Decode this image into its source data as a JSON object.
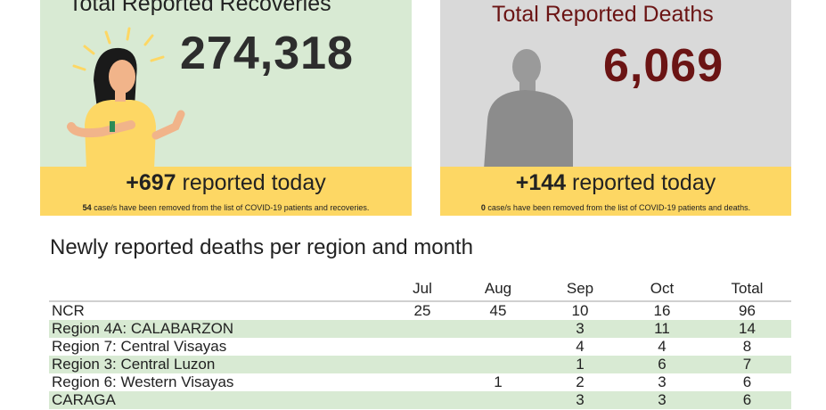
{
  "recoveries": {
    "title": "Total Reported Recoveries",
    "total": "274,318",
    "today_value": "+697",
    "today_label": "reported today",
    "removed_count": "54",
    "removed_text": "case/s have been removed from the list of COVID-19 patients and recoveries."
  },
  "deaths": {
    "title": "Total Reported Deaths",
    "total": "6,069",
    "today_value": "+144",
    "today_label": "reported today",
    "removed_count": "0",
    "removed_text": "case/s have been removed from the list of COVID-19 patients and deaths."
  },
  "table": {
    "title": "Newly reported deaths per region and month",
    "columns": [
      "",
      "Jul",
      "Aug",
      "Sep",
      "Oct",
      "Total"
    ],
    "rows": [
      [
        "NCR",
        "25",
        "45",
        "10",
        "16",
        "96"
      ],
      [
        "Region 4A: CALABARZON",
        "",
        "",
        "3",
        "11",
        "14"
      ],
      [
        "Region 7: Central Visayas",
        "",
        "",
        "4",
        "4",
        "8"
      ],
      [
        "Region 3: Central Luzon",
        "",
        "",
        "1",
        "6",
        "7"
      ],
      [
        "Region 6: Western Visayas",
        "",
        "1",
        "2",
        "3",
        "6"
      ],
      [
        "CARAGA",
        "",
        "",
        "3",
        "3",
        "6"
      ]
    ]
  },
  "colors": {
    "green": "#d8ead3",
    "gray": "#d9d9d9",
    "yellow": "#fdd764",
    "deaths_red": "#6b1414"
  }
}
